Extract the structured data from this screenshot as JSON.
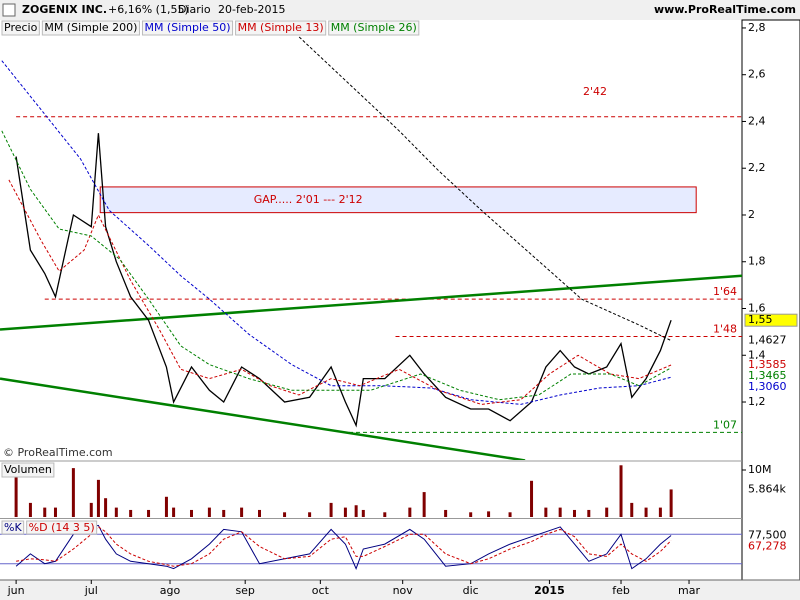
{
  "header": {
    "symbol": "ZOGENIX INC.",
    "change": "+6,16% (1,55)",
    "period": "Diario",
    "date": "20-feb-2015",
    "site": "www.ProRealTime.com"
  },
  "chart_data": [
    {
      "type": "line",
      "source": "© ProRealTime.com",
      "xlim": [
        -4.5,
        202.8
      ],
      "ylim": [
        0.952,
        2.834
      ],
      "yticks": [
        {
          "value": 1.2,
          "label": "1,2"
        },
        {
          "value": 1.4,
          "label": "1,4"
        },
        {
          "value": 1.6,
          "label": "1,6"
        },
        {
          "value": 1.8,
          "label": "1,8"
        },
        2,
        {
          "value": 2.2,
          "label": "2,2"
        },
        {
          "value": 2.4,
          "label": "2,4"
        },
        {
          "value": 2.6,
          "label": "2,6"
        },
        {
          "value": 2.8,
          "label": "2,8"
        }
      ],
      "series": [
        {
          "name": "Precio",
          "color": "#000000",
          "x": [
            0,
            4,
            8,
            11,
            16,
            21,
            23,
            25,
            28,
            32,
            37,
            42,
            44,
            49,
            54,
            58,
            63,
            68,
            75,
            82,
            88,
            92,
            95,
            97,
            103,
            110,
            114,
            120,
            127,
            132,
            138,
            144,
            148,
            152,
            156,
            160,
            165,
            169,
            172,
            176,
            180,
            183
          ],
          "values": [
            2.25,
            1.85,
            1.75,
            1.65,
            2.0,
            1.95,
            2.35,
            1.95,
            1.8,
            1.65,
            1.55,
            1.35,
            1.2,
            1.35,
            1.25,
            1.2,
            1.35,
            1.3,
            1.2,
            1.22,
            1.35,
            1.2,
            1.1,
            1.3,
            1.3,
            1.4,
            1.32,
            1.22,
            1.17,
            1.17,
            1.12,
            1.2,
            1.35,
            1.42,
            1.35,
            1.32,
            1.35,
            1.45,
            1.22,
            1.3,
            1.42,
            1.55
          ]
        },
        {
          "name": "MM (Simple 200)",
          "color": "#000000",
          "x": [
            75,
            107,
            118,
            130,
            158,
            174,
            183
          ],
          "values": [
            2.82,
            2.36,
            2.19,
            2.02,
            1.64,
            1.53,
            1.4627
          ]
        },
        {
          "name": "MM (Simple 50)",
          "color": "#0000cc",
          "x": [
            -4,
            7,
            18,
            26,
            37,
            46,
            54,
            65,
            77,
            88,
            102,
            116,
            127,
            141,
            152,
            163,
            174,
            183
          ],
          "values": [
            2.66,
            2.45,
            2.24,
            2.02,
            1.87,
            1.74,
            1.64,
            1.49,
            1.36,
            1.27,
            1.27,
            1.26,
            1.21,
            1.19,
            1.23,
            1.26,
            1.27,
            1.306
          ]
        },
        {
          "name": "MM (Simple 13)",
          "color": "#cc0000",
          "x": [
            -2,
            7,
            12,
            19,
            23,
            32,
            40,
            46,
            54,
            63,
            71,
            79,
            88,
            96,
            107,
            118,
            130,
            141,
            149,
            157,
            166,
            174,
            183
          ],
          "values": [
            2.15,
            1.89,
            1.76,
            1.85,
            2.0,
            1.72,
            1.51,
            1.34,
            1.3,
            1.34,
            1.27,
            1.23,
            1.3,
            1.27,
            1.34,
            1.25,
            1.19,
            1.21,
            1.32,
            1.4,
            1.32,
            1.3,
            1.3585
          ]
        },
        {
          "name": "MM (Simple 26)",
          "color": "#008000",
          "x": [
            -4,
            4,
            12,
            21,
            29,
            37,
            46,
            54,
            65,
            77,
            88,
            99,
            113,
            124,
            135,
            146,
            155,
            166,
            174,
            183
          ],
          "values": [
            2.36,
            2.11,
            1.94,
            1.91,
            1.81,
            1.64,
            1.44,
            1.36,
            1.3,
            1.25,
            1.25,
            1.25,
            1.32,
            1.25,
            1.21,
            1.23,
            1.32,
            1.32,
            1.27,
            1.3465
          ]
        }
      ],
      "hlines": [
        {
          "value": 2.42,
          "x": 0,
          "label": "2'42",
          "color": "#cc0000"
        },
        {
          "value": 1.64,
          "x": 8,
          "label": "1'64",
          "color": "#cc0000"
        },
        {
          "value": 1.48,
          "x": 106,
          "label": "1'48",
          "color": "#cc0000"
        },
        {
          "value": 1.07,
          "x": 93,
          "label": "1'07",
          "color": "#008000"
        }
      ],
      "gap": {
        "x": [
          23.5,
          190
        ],
        "values": [
          2.01,
          2.12
        ],
        "label": "GAP..... 2'01 --- 2'12",
        "color": "#cc0000"
      },
      "trendlines": [
        {
          "x": [
            -4.5,
            202.8
          ],
          "values": [
            1.51,
            1.74
          ]
        },
        {
          "x": [
            -4.5,
            142.2
          ],
          "values": [
            1.3,
            0.95
          ]
        }
      ],
      "trend_color": "#008000",
      "right_labels": [
        {
          "value": 1.55,
          "label": "1,55",
          "color": "#000000",
          "background": "#ffff00"
        },
        {
          "value": 1.4627,
          "label": "1,4627",
          "color": "#000000"
        },
        {
          "value": 1.3585,
          "label": "1,3585",
          "color": "#cc0000"
        },
        {
          "value": 1.3465,
          "label": "1,3465",
          "color": "#008000"
        },
        {
          "value": 1.306,
          "label": "1,3060",
          "color": "#0000cc"
        }
      ]
    },
    {
      "type": "bar",
      "title": "Volumen",
      "color": "#800000",
      "xlim": [
        -4.5,
        202.8
      ],
      "ylim": [
        0,
        11.7
      ],
      "yticks": [
        {
          "value": 10,
          "label": "10M"
        }
      ],
      "x": [
        0,
        4,
        8,
        11,
        16,
        21,
        23,
        25,
        28,
        32,
        37,
        42,
        44,
        49,
        54,
        58,
        63,
        68,
        75,
        82,
        88,
        92,
        95,
        97,
        103,
        110,
        114,
        120,
        127,
        132,
        138,
        144,
        148,
        152,
        156,
        160,
        165,
        169,
        172,
        176,
        180,
        183
      ],
      "values": [
        9,
        3,
        2,
        2,
        10.4,
        3,
        7.9,
        4,
        2,
        1.5,
        1.5,
        4.3,
        2,
        1.5,
        2,
        1.5,
        2,
        1.5,
        1,
        1,
        3,
        2,
        2.5,
        1.5,
        1,
        2,
        5.3,
        1.5,
        1,
        1.2,
        1,
        7.7,
        2,
        2,
        1.5,
        1.5,
        2,
        11,
        3,
        2,
        2,
        5.864
      ],
      "right_labels": [
        {
          "value": 5.864,
          "label": "5.864k",
          "color": "#000000"
        }
      ]
    },
    {
      "type": "line",
      "xlim": [
        -4.5,
        202.8
      ],
      "ylim": [
        -5,
        105
      ],
      "levels": [
        80,
        20
      ],
      "xticks": [
        {
          "value": 0,
          "label": "jun"
        },
        {
          "value": 21,
          "label": "jul"
        },
        {
          "value": 43,
          "label": "ago"
        },
        {
          "value": 64,
          "label": "sep"
        },
        {
          "value": 85,
          "label": "oct"
        },
        {
          "value": 108,
          "label": "nov"
        },
        {
          "value": 127,
          "label": "dic"
        },
        {
          "value": 149,
          "label": "2015"
        },
        {
          "value": 169,
          "label": "feb"
        },
        {
          "value": 188,
          "label": "mar"
        }
      ],
      "series": [
        {
          "name": "%K",
          "color": "#000080",
          "x": [
            0,
            4,
            8,
            11,
            16,
            21,
            23,
            25,
            28,
            32,
            37,
            42,
            44,
            49,
            54,
            58,
            63,
            68,
            75,
            82,
            88,
            92,
            95,
            97,
            103,
            110,
            114,
            120,
            127,
            132,
            138,
            144,
            148,
            152,
            156,
            160,
            165,
            169,
            172,
            176,
            180,
            183
          ],
          "values": [
            15,
            40,
            20,
            25,
            80,
            95,
            98,
            70,
            40,
            25,
            20,
            15,
            10,
            30,
            60,
            90,
            85,
            20,
            30,
            40,
            90,
            60,
            10,
            50,
            60,
            90,
            70,
            15,
            20,
            40,
            60,
            75,
            85,
            95,
            60,
            25,
            40,
            80,
            10,
            30,
            60,
            77.5
          ]
        },
        {
          "name": "%D (14 3 5)",
          "color": "#cc0000",
          "x": [
            0,
            4,
            8,
            11,
            16,
            21,
            23,
            25,
            28,
            32,
            37,
            42,
            44,
            49,
            54,
            58,
            63,
            68,
            75,
            82,
            88,
            92,
            95,
            97,
            103,
            110,
            114,
            120,
            127,
            132,
            138,
            144,
            148,
            152,
            156,
            160,
            165,
            169,
            172,
            176,
            180,
            183
          ],
          "values": [
            25,
            30,
            28,
            25,
            50,
            80,
            95,
            85,
            60,
            40,
            25,
            18,
            15,
            20,
            40,
            70,
            85,
            55,
            30,
            35,
            70,
            75,
            35,
            35,
            55,
            80,
            80,
            40,
            20,
            30,
            50,
            65,
            80,
            90,
            75,
            40,
            35,
            60,
            40,
            25,
            45,
            67.278
          ]
        }
      ],
      "right_labels": [
        {
          "value": 77.5,
          "label": "77,500",
          "color": "#000000"
        },
        {
          "value": 67.278,
          "label": "67,278",
          "color": "#cc0000"
        }
      ]
    }
  ]
}
